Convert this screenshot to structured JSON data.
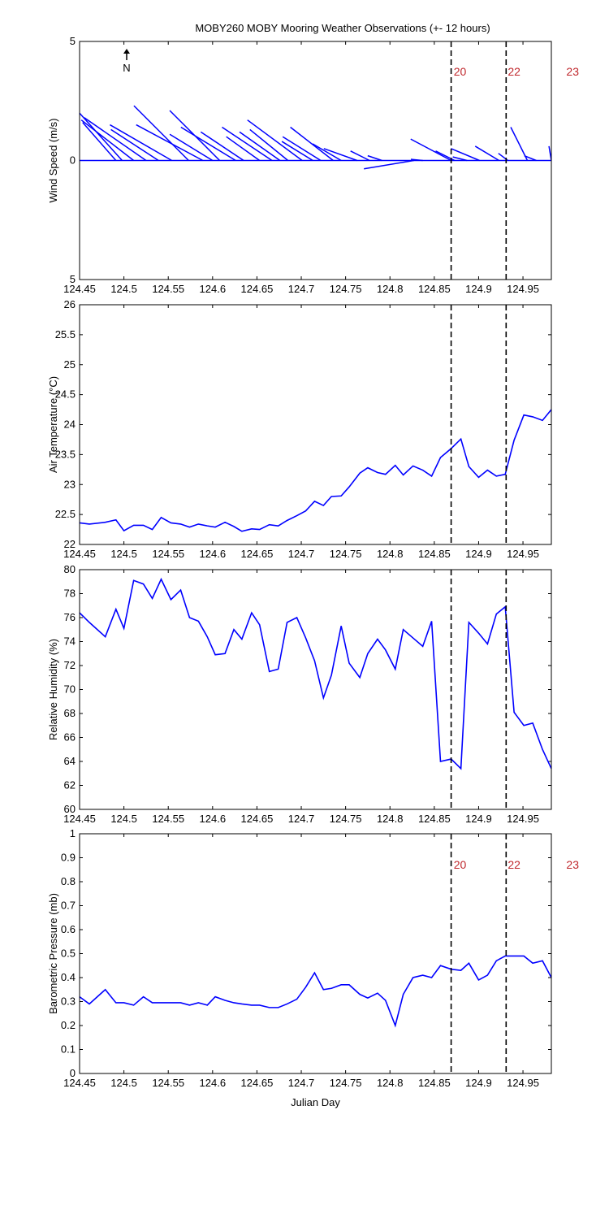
{
  "chart_data": [
    {
      "type": "stick",
      "title": "MOBY260 MOBY Mooring Weather Observations (+- 12 hours)",
      "ylabel": "Wind Speed (m/s)",
      "north_label": "N",
      "color": "#0000ff",
      "x": [
        124.491,
        124.498,
        124.511,
        124.525,
        124.539,
        124.554,
        124.573,
        124.589,
        124.6,
        124.608,
        124.626,
        124.635,
        124.653,
        124.667,
        124.676,
        124.685,
        124.701,
        124.713,
        124.722,
        124.736,
        124.745,
        124.763,
        124.777,
        124.791,
        124.827,
        124.837,
        124.869,
        124.873,
        124.887,
        124.901,
        124.923,
        124.933,
        124.955,
        124.965,
        124.982
      ],
      "u": [
        -1.4,
        -1.8,
        -2.2,
        -2.6,
        -2.0,
        -2.6,
        -2.3,
        -2.8,
        -1.8,
        -2.1,
        -2.3,
        -1.8,
        -1.4,
        -2.1,
        -1.7,
        -1.6,
        -2.3,
        -1.3,
        -1.6,
        -1.8,
        -1.2,
        -1.4,
        -0.8,
        -0.6,
        -2.1,
        -0.5,
        -1.7,
        -0.8,
        -0.6,
        -1.2,
        -1.0,
        -0.4,
        -0.7,
        -0.5,
        -0.1
      ],
      "v": [
        1.6,
        2.0,
        1.7,
        1.8,
        1.3,
        1.5,
        2.3,
        1.5,
        1.1,
        2.1,
        1.4,
        1.2,
        1.0,
        1.4,
        1.2,
        1.3,
        1.7,
        0.8,
        1.0,
        1.4,
        0.7,
        0.5,
        0.4,
        0.2,
        -0.35,
        0.05,
        0.9,
        0.4,
        0.15,
        0.5,
        0.6,
        0.3,
        1.4,
        0.2,
        0.6
      ],
      "xlim": [
        124.45,
        124.982
      ],
      "xticks": [
        124.45,
        124.5,
        124.55,
        124.6,
        124.65,
        124.7,
        124.75,
        124.8,
        124.85,
        124.9,
        124.95
      ],
      "ylim": [
        -5,
        5
      ],
      "yticks": [
        {
          "value": -5,
          "label": "5"
        },
        0,
        5
      ],
      "vlines": [
        124.869,
        124.931
      ],
      "annotations": [
        {
          "text": "20",
          "x": 124.879,
          "y": 3.57
        },
        {
          "text": "22",
          "x": 124.94,
          "y": 3.57
        },
        {
          "text": "23",
          "x": 125.006,
          "y": 3.57
        }
      ]
    },
    {
      "type": "line",
      "ylabel": "Air Temperature (°C)",
      "color": "#0000ff",
      "x": [
        124.45,
        124.461,
        124.479,
        124.491,
        124.5,
        124.511,
        124.522,
        124.532,
        124.542,
        124.553,
        124.564,
        124.574,
        124.584,
        124.594,
        124.603,
        124.614,
        124.624,
        124.633,
        124.644,
        124.653,
        124.664,
        124.674,
        124.684,
        124.695,
        124.705,
        124.715,
        124.725,
        124.734,
        124.745,
        124.754,
        124.766,
        124.775,
        124.786,
        124.795,
        124.806,
        124.815,
        124.826,
        124.837,
        124.847,
        124.857,
        124.869,
        124.88,
        124.889,
        124.9,
        124.91,
        124.92,
        124.93,
        124.94,
        124.951,
        124.961,
        124.972,
        124.982
      ],
      "values": [
        22.36,
        22.34,
        22.37,
        22.41,
        22.23,
        22.32,
        22.32,
        22.25,
        22.45,
        22.36,
        22.34,
        22.29,
        22.34,
        22.31,
        22.29,
        22.37,
        22.3,
        22.22,
        22.26,
        22.25,
        22.33,
        22.31,
        22.4,
        22.48,
        22.56,
        22.72,
        22.65,
        22.8,
        22.81,
        22.96,
        23.19,
        23.28,
        23.2,
        23.17,
        23.32,
        23.16,
        23.31,
        23.24,
        23.14,
        23.45,
        23.6,
        23.76,
        23.3,
        23.12,
        23.24,
        23.14,
        23.17,
        23.74,
        24.16,
        24.13,
        24.07,
        24.25
      ],
      "xlim": [
        124.45,
        124.982
      ],
      "xticks": [
        124.45,
        124.5,
        124.55,
        124.6,
        124.65,
        124.7,
        124.75,
        124.8,
        124.85,
        124.9,
        124.95
      ],
      "ylim": [
        22,
        26
      ],
      "yticks": [
        22,
        22.5,
        23,
        23.5,
        24,
        24.5,
        25,
        25.5,
        26
      ],
      "vlines": [
        124.869,
        124.931
      ]
    },
    {
      "type": "line",
      "ylabel": "Relative Humidity (%)",
      "color": "#0000ff",
      "x": [
        124.45,
        124.461,
        124.479,
        124.491,
        124.5,
        124.511,
        124.522,
        124.532,
        124.542,
        124.553,
        124.564,
        124.574,
        124.584,
        124.594,
        124.603,
        124.614,
        124.624,
        124.633,
        124.644,
        124.653,
        124.664,
        124.674,
        124.684,
        124.695,
        124.705,
        124.715,
        124.725,
        124.734,
        124.745,
        124.754,
        124.766,
        124.775,
        124.786,
        124.795,
        124.806,
        124.815,
        124.826,
        124.837,
        124.847,
        124.857,
        124.869,
        124.88,
        124.889,
        124.9,
        124.91,
        124.92,
        124.93,
        124.94,
        124.951,
        124.961,
        124.972,
        124.982
      ],
      "values": [
        76.4,
        75.6,
        74.4,
        76.7,
        75.1,
        79.1,
        78.8,
        77.6,
        79.2,
        77.5,
        78.3,
        76.0,
        75.7,
        74.4,
        72.9,
        73.0,
        75.0,
        74.2,
        76.4,
        75.4,
        71.5,
        71.7,
        75.6,
        76.0,
        74.3,
        72.4,
        69.3,
        71.2,
        75.3,
        72.2,
        71.0,
        73.0,
        74.2,
        73.3,
        71.7,
        75.0,
        74.3,
        73.6,
        75.7,
        64.0,
        64.2,
        63.4,
        75.6,
        74.7,
        73.8,
        76.3,
        76.9,
        68.1,
        67.0,
        67.2,
        65.0,
        63.4
      ],
      "xlim": [
        124.45,
        124.982
      ],
      "xticks": [
        124.45,
        124.5,
        124.55,
        124.6,
        124.65,
        124.7,
        124.75,
        124.8,
        124.85,
        124.9,
        124.95
      ],
      "ylim": [
        60,
        80
      ],
      "yticks": [
        60,
        62,
        64,
        66,
        68,
        70,
        72,
        74,
        76,
        78,
        80
      ],
      "vlines": [
        124.869,
        124.931
      ]
    },
    {
      "type": "line",
      "ylabel": "Barometric Pressure (mb)",
      "xlabel": "Julian Day",
      "color": "#0000ff",
      "x": [
        124.45,
        124.461,
        124.479,
        124.491,
        124.5,
        124.511,
        124.522,
        124.532,
        124.542,
        124.553,
        124.564,
        124.574,
        124.584,
        124.594,
        124.603,
        124.614,
        124.624,
        124.633,
        124.644,
        124.653,
        124.664,
        124.674,
        124.684,
        124.695,
        124.705,
        124.715,
        124.725,
        124.734,
        124.745,
        124.754,
        124.766,
        124.775,
        124.786,
        124.795,
        124.806,
        124.815,
        124.826,
        124.837,
        124.847,
        124.857,
        124.869,
        124.88,
        124.889,
        124.9,
        124.91,
        124.92,
        124.93,
        124.94,
        124.951,
        124.961,
        124.972,
        124.982
      ],
      "values": [
        0.32,
        0.29,
        0.35,
        0.295,
        0.295,
        0.285,
        0.32,
        0.295,
        0.295,
        0.295,
        0.295,
        0.285,
        0.295,
        0.285,
        0.32,
        0.305,
        0.295,
        0.29,
        0.285,
        0.285,
        0.275,
        0.275,
        0.29,
        0.31,
        0.36,
        0.42,
        0.35,
        0.355,
        0.37,
        0.37,
        0.33,
        0.315,
        0.335,
        0.305,
        0.2,
        0.33,
        0.4,
        0.41,
        0.4,
        0.45,
        0.435,
        0.43,
        0.46,
        0.39,
        0.41,
        0.47,
        0.49,
        0.49,
        0.49,
        0.46,
        0.47,
        0.4
      ],
      "xlim": [
        124.45,
        124.982
      ],
      "xticks": [
        124.45,
        124.5,
        124.55,
        124.6,
        124.65,
        124.7,
        124.75,
        124.8,
        124.85,
        124.9,
        124.95
      ],
      "ylim": [
        0,
        1
      ],
      "yticks": [
        0,
        0.1,
        0.2,
        0.3,
        0.4,
        0.5,
        0.6,
        0.7,
        0.8,
        0.9,
        1
      ],
      "vlines": [
        124.869,
        124.931
      ],
      "annotations": [
        {
          "text": "20",
          "x": 124.879,
          "y": 0.854
        },
        {
          "text": "22",
          "x": 124.94,
          "y": 0.854
        },
        {
          "text": "23",
          "x": 125.006,
          "y": 0.854
        }
      ]
    }
  ]
}
